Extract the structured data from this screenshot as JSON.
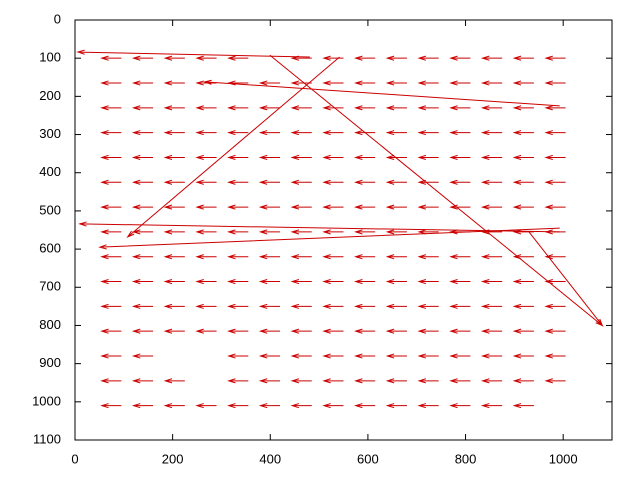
{
  "chart_data": {
    "type": "vector",
    "color": "#cc0000",
    "xlim": [
      0,
      1100
    ],
    "xticks": [
      0,
      200,
      400,
      600,
      800,
      1000
    ],
    "ylim": [
      0,
      1100
    ],
    "yticks": [
      0,
      100,
      200,
      300,
      400,
      500,
      600,
      700,
      800,
      900,
      1000,
      1100
    ],
    "y_inverted": true,
    "arrows": [
      [
        95,
        100,
        -40,
        0
      ],
      [
        160,
        100,
        -40,
        0
      ],
      [
        225,
        100,
        -40,
        0
      ],
      [
        290,
        100,
        -40,
        0
      ],
      [
        355,
        100,
        -40,
        0
      ],
      [
        485,
        100,
        -40,
        0
      ],
      [
        550,
        100,
        -40,
        0
      ],
      [
        615,
        100,
        -40,
        0
      ],
      [
        680,
        100,
        -40,
        0
      ],
      [
        745,
        100,
        -40,
        0
      ],
      [
        810,
        100,
        -40,
        0
      ],
      [
        875,
        100,
        -40,
        0
      ],
      [
        940,
        100,
        -40,
        0
      ],
      [
        1005,
        100,
        -40,
        0
      ],
      [
        95,
        165,
        -40,
        0
      ],
      [
        160,
        165,
        -40,
        0
      ],
      [
        225,
        165,
        -40,
        0
      ],
      [
        290,
        165,
        -40,
        0
      ],
      [
        355,
        165,
        -40,
        0
      ],
      [
        420,
        165,
        -40,
        0
      ],
      [
        485,
        165,
        -40,
        0
      ],
      [
        550,
        165,
        -40,
        0
      ],
      [
        615,
        165,
        -40,
        0
      ],
      [
        680,
        165,
        -40,
        0
      ],
      [
        745,
        165,
        -40,
        0
      ],
      [
        810,
        165,
        -40,
        0
      ],
      [
        875,
        165,
        -40,
        0
      ],
      [
        940,
        165,
        -40,
        0
      ],
      [
        1005,
        165,
        -40,
        0
      ],
      [
        95,
        230,
        -40,
        0
      ],
      [
        160,
        230,
        -40,
        0
      ],
      [
        225,
        230,
        -40,
        0
      ],
      [
        290,
        230,
        -40,
        0
      ],
      [
        355,
        230,
        -40,
        0
      ],
      [
        420,
        230,
        -40,
        0
      ],
      [
        485,
        230,
        -40,
        0
      ],
      [
        550,
        230,
        -40,
        0
      ],
      [
        615,
        230,
        -40,
        0
      ],
      [
        680,
        230,
        -40,
        0
      ],
      [
        745,
        230,
        -40,
        0
      ],
      [
        810,
        230,
        -40,
        0
      ],
      [
        875,
        230,
        -40,
        0
      ],
      [
        940,
        230,
        -40,
        0
      ],
      [
        1005,
        230,
        -40,
        0
      ],
      [
        95,
        295,
        -40,
        0
      ],
      [
        160,
        295,
        -40,
        0
      ],
      [
        225,
        295,
        -40,
        0
      ],
      [
        290,
        295,
        -40,
        0
      ],
      [
        355,
        295,
        -40,
        0
      ],
      [
        420,
        295,
        -40,
        0
      ],
      [
        485,
        295,
        -40,
        0
      ],
      [
        550,
        295,
        -40,
        0
      ],
      [
        615,
        295,
        -40,
        0
      ],
      [
        680,
        295,
        -40,
        0
      ],
      [
        745,
        295,
        -40,
        0
      ],
      [
        810,
        295,
        -40,
        0
      ],
      [
        875,
        295,
        -40,
        0
      ],
      [
        940,
        295,
        -40,
        0
      ],
      [
        1005,
        295,
        -40,
        0
      ],
      [
        95,
        360,
        -40,
        0
      ],
      [
        160,
        360,
        -40,
        0
      ],
      [
        225,
        360,
        -40,
        0
      ],
      [
        290,
        360,
        -40,
        0
      ],
      [
        355,
        360,
        -40,
        0
      ],
      [
        420,
        360,
        -40,
        0
      ],
      [
        485,
        360,
        -40,
        0
      ],
      [
        550,
        360,
        -40,
        0
      ],
      [
        615,
        360,
        -40,
        0
      ],
      [
        680,
        360,
        -40,
        0
      ],
      [
        745,
        360,
        -40,
        0
      ],
      [
        810,
        360,
        -40,
        0
      ],
      [
        875,
        360,
        -40,
        0
      ],
      [
        940,
        360,
        -40,
        0
      ],
      [
        1005,
        360,
        -40,
        0
      ],
      [
        95,
        425,
        -40,
        0
      ],
      [
        160,
        425,
        -40,
        0
      ],
      [
        225,
        425,
        -40,
        0
      ],
      [
        290,
        425,
        -40,
        0
      ],
      [
        355,
        425,
        -40,
        0
      ],
      [
        420,
        425,
        -40,
        0
      ],
      [
        485,
        425,
        -40,
        0
      ],
      [
        550,
        425,
        -40,
        0
      ],
      [
        615,
        425,
        -40,
        0
      ],
      [
        680,
        425,
        -40,
        0
      ],
      [
        745,
        425,
        -40,
        0
      ],
      [
        810,
        425,
        -40,
        0
      ],
      [
        875,
        425,
        -40,
        0
      ],
      [
        940,
        425,
        -40,
        0
      ],
      [
        1005,
        425,
        -40,
        0
      ],
      [
        95,
        490,
        -40,
        0
      ],
      [
        160,
        490,
        -40,
        0
      ],
      [
        225,
        490,
        -40,
        0
      ],
      [
        290,
        490,
        -40,
        0
      ],
      [
        355,
        490,
        -40,
        0
      ],
      [
        420,
        490,
        -40,
        0
      ],
      [
        485,
        490,
        -40,
        0
      ],
      [
        550,
        490,
        -40,
        0
      ],
      [
        615,
        490,
        -40,
        0
      ],
      [
        680,
        490,
        -40,
        0
      ],
      [
        745,
        490,
        -40,
        0
      ],
      [
        810,
        490,
        -40,
        0
      ],
      [
        875,
        490,
        -40,
        0
      ],
      [
        940,
        490,
        -40,
        0
      ],
      [
        1005,
        490,
        -40,
        0
      ],
      [
        95,
        555,
        -40,
        0
      ],
      [
        160,
        555,
        -40,
        0
      ],
      [
        225,
        555,
        -40,
        0
      ],
      [
        290,
        555,
        -40,
        0
      ],
      [
        355,
        555,
        -40,
        0
      ],
      [
        420,
        555,
        -40,
        0
      ],
      [
        485,
        555,
        -40,
        0
      ],
      [
        550,
        555,
        -40,
        0
      ],
      [
        615,
        555,
        -40,
        0
      ],
      [
        680,
        555,
        -40,
        0
      ],
      [
        745,
        555,
        -40,
        0
      ],
      [
        810,
        555,
        -40,
        0
      ],
      [
        875,
        555,
        -40,
        0
      ],
      [
        940,
        555,
        -40,
        0
      ],
      [
        1005,
        555,
        -40,
        0
      ],
      [
        95,
        620,
        -40,
        0
      ],
      [
        160,
        620,
        -40,
        0
      ],
      [
        225,
        620,
        -40,
        0
      ],
      [
        290,
        620,
        -40,
        0
      ],
      [
        355,
        620,
        -40,
        0
      ],
      [
        420,
        620,
        -40,
        0
      ],
      [
        485,
        620,
        -40,
        0
      ],
      [
        550,
        620,
        -40,
        0
      ],
      [
        615,
        620,
        -40,
        0
      ],
      [
        680,
        620,
        -40,
        0
      ],
      [
        745,
        620,
        -40,
        0
      ],
      [
        810,
        620,
        -40,
        0
      ],
      [
        875,
        620,
        -40,
        0
      ],
      [
        940,
        620,
        -40,
        0
      ],
      [
        1005,
        620,
        -40,
        0
      ],
      [
        95,
        685,
        -40,
        0
      ],
      [
        160,
        685,
        -40,
        0
      ],
      [
        225,
        685,
        -40,
        0
      ],
      [
        290,
        685,
        -40,
        0
      ],
      [
        355,
        685,
        -40,
        0
      ],
      [
        420,
        685,
        -40,
        0
      ],
      [
        485,
        685,
        -40,
        0
      ],
      [
        550,
        685,
        -40,
        0
      ],
      [
        615,
        685,
        -40,
        0
      ],
      [
        680,
        685,
        -40,
        0
      ],
      [
        745,
        685,
        -40,
        0
      ],
      [
        810,
        685,
        -40,
        0
      ],
      [
        875,
        685,
        -40,
        0
      ],
      [
        940,
        685,
        -40,
        0
      ],
      [
        1005,
        685,
        -40,
        0
      ],
      [
        95,
        750,
        -40,
        0
      ],
      [
        160,
        750,
        -40,
        0
      ],
      [
        225,
        750,
        -40,
        0
      ],
      [
        290,
        750,
        -40,
        0
      ],
      [
        355,
        750,
        -40,
        0
      ],
      [
        420,
        750,
        -40,
        0
      ],
      [
        485,
        750,
        -40,
        0
      ],
      [
        550,
        750,
        -40,
        0
      ],
      [
        615,
        750,
        -40,
        0
      ],
      [
        680,
        750,
        -40,
        0
      ],
      [
        745,
        750,
        -40,
        0
      ],
      [
        810,
        750,
        -40,
        0
      ],
      [
        875,
        750,
        -40,
        0
      ],
      [
        940,
        750,
        -40,
        0
      ],
      [
        1005,
        750,
        -40,
        0
      ],
      [
        95,
        815,
        -40,
        0
      ],
      [
        160,
        815,
        -40,
        0
      ],
      [
        225,
        815,
        -40,
        0
      ],
      [
        290,
        815,
        -40,
        0
      ],
      [
        355,
        815,
        -40,
        0
      ],
      [
        420,
        815,
        -40,
        0
      ],
      [
        485,
        815,
        -40,
        0
      ],
      [
        550,
        815,
        -40,
        0
      ],
      [
        615,
        815,
        -40,
        0
      ],
      [
        680,
        815,
        -40,
        0
      ],
      [
        745,
        815,
        -40,
        0
      ],
      [
        810,
        815,
        -40,
        0
      ],
      [
        875,
        815,
        -40,
        0
      ],
      [
        940,
        815,
        -40,
        0
      ],
      [
        1005,
        815,
        -40,
        0
      ],
      [
        95,
        880,
        -40,
        0
      ],
      [
        160,
        880,
        -40,
        0
      ],
      [
        355,
        880,
        -40,
        0
      ],
      [
        420,
        880,
        -40,
        0
      ],
      [
        485,
        880,
        -40,
        0
      ],
      [
        550,
        880,
        -40,
        0
      ],
      [
        615,
        880,
        -40,
        0
      ],
      [
        680,
        880,
        -40,
        0
      ],
      [
        745,
        880,
        -40,
        0
      ],
      [
        810,
        880,
        -40,
        0
      ],
      [
        875,
        880,
        -40,
        0
      ],
      [
        940,
        880,
        -40,
        0
      ],
      [
        1005,
        880,
        -40,
        0
      ],
      [
        95,
        945,
        -40,
        0
      ],
      [
        160,
        945,
        -40,
        0
      ],
      [
        225,
        945,
        -40,
        0
      ],
      [
        355,
        945,
        -40,
        0
      ],
      [
        420,
        945,
        -40,
        0
      ],
      [
        485,
        945,
        -40,
        0
      ],
      [
        550,
        945,
        -40,
        0
      ],
      [
        615,
        945,
        -40,
        0
      ],
      [
        680,
        945,
        -40,
        0
      ],
      [
        745,
        945,
        -40,
        0
      ],
      [
        810,
        945,
        -40,
        0
      ],
      [
        875,
        945,
        -40,
        0
      ],
      [
        940,
        945,
        -40,
        0
      ],
      [
        1005,
        945,
        -40,
        0
      ],
      [
        95,
        1010,
        -40,
        0
      ],
      [
        160,
        1010,
        -40,
        0
      ],
      [
        225,
        1010,
        -40,
        0
      ],
      [
        290,
        1010,
        -40,
        0
      ],
      [
        355,
        1010,
        -40,
        0
      ],
      [
        420,
        1010,
        -40,
        0
      ],
      [
        485,
        1010,
        -40,
        0
      ],
      [
        550,
        1010,
        -40,
        0
      ],
      [
        615,
        1010,
        -40,
        0
      ],
      [
        680,
        1010,
        -40,
        0
      ],
      [
        745,
        1010,
        -40,
        0
      ],
      [
        810,
        1010,
        -40,
        0
      ],
      [
        875,
        1010,
        -40,
        0
      ],
      [
        940,
        1010,
        -40,
        0
      ],
      [
        481,
        97,
        -475,
        -13
      ],
      [
        399,
        92,
        681,
        708
      ],
      [
        542,
        97,
        -434,
        471
      ],
      [
        993,
        225,
        -727,
        -63
      ],
      [
        993,
        555,
        -983,
        -21
      ],
      [
        993,
        545,
        -942,
        50
      ],
      [
        930,
        555,
        150,
        245
      ]
    ]
  }
}
